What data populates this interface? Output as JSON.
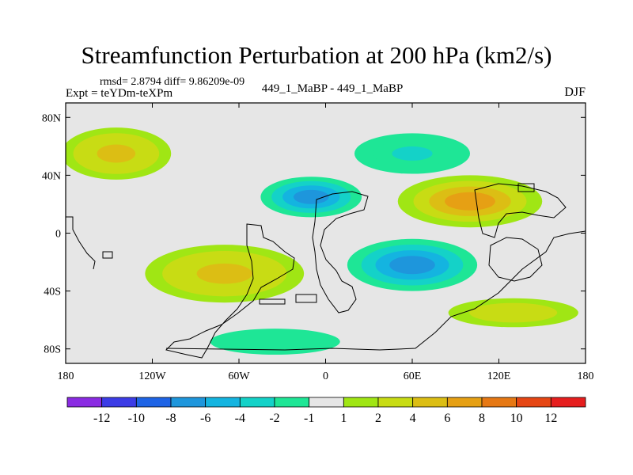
{
  "chart_data": {
    "type": "heatmap",
    "title": "Streamfunction Perturbation at 200 hPa (km2/s)",
    "stats_text": "rmsd= 2.8794 diff= 9.86209e-09",
    "left_label": "Expt = teYDm-teXPm",
    "center_label": "449_1_MaBP - 449_1_MaBP",
    "right_label": "DJF",
    "xlim": [
      -180,
      180
    ],
    "ylim": [
      -90,
      90
    ],
    "x_ticks": [
      {
        "value": -180,
        "label": "180"
      },
      {
        "value": -120,
        "label": "120W"
      },
      {
        "value": -60,
        "label": "60W"
      },
      {
        "value": 0,
        "label": "0"
      },
      {
        "value": 60,
        "label": "60E"
      },
      {
        "value": 120,
        "label": "120E"
      },
      {
        "value": 180,
        "label": "180"
      }
    ],
    "y_ticks": [
      {
        "value": 80,
        "label": "80N"
      },
      {
        "value": 40,
        "label": "40N"
      },
      {
        "value": 0,
        "label": "0"
      },
      {
        "value": -40,
        "label": "40S"
      },
      {
        "value": -80,
        "label": "80S"
      }
    ],
    "colorbar": {
      "colors": [
        "#8a2be2",
        "#3c3ce6",
        "#1e64e6",
        "#1e96dc",
        "#14b4e0",
        "#14d2c8",
        "#1ee696",
        "#e6e6e6",
        "#a0e614",
        "#c8dc14",
        "#dcbe14",
        "#e6a014",
        "#e67814",
        "#e64614",
        "#e61e1e"
      ],
      "labels": [
        "-12",
        "-10",
        "-8",
        "-6",
        "-4",
        "-2",
        "-1",
        "1",
        "2",
        "4",
        "6",
        "8",
        "10",
        "12"
      ]
    },
    "features": [
      {
        "name": "north-pacific-high",
        "lon": -145,
        "lat": 55,
        "rx": 38,
        "ry": 18,
        "level": 4
      },
      {
        "name": "asia-high",
        "lon": 100,
        "lat": 22,
        "rx": 50,
        "ry": 18,
        "level": 6
      },
      {
        "name": "south-america-high",
        "lon": -70,
        "lat": -28,
        "rx": 55,
        "ry": 20,
        "level": 4
      },
      {
        "name": "africa-low",
        "lon": -10,
        "lat": 25,
        "rx": 35,
        "ry": 14,
        "level": -6
      },
      {
        "name": "indian-ocean-low",
        "lon": 60,
        "lat": -22,
        "rx": 45,
        "ry": 18,
        "level": -6
      },
      {
        "name": "north-atlantic-low",
        "lon": 60,
        "lat": 55,
        "rx": 40,
        "ry": 14,
        "level": -2
      },
      {
        "name": "south-polar-band",
        "lon": -35,
        "lat": -75,
        "rx": 45,
        "ry": 9,
        "level": -1
      },
      {
        "name": "east-pacific-band",
        "lon": 130,
        "lat": -55,
        "rx": 45,
        "ry": 10,
        "level": 2
      }
    ]
  }
}
